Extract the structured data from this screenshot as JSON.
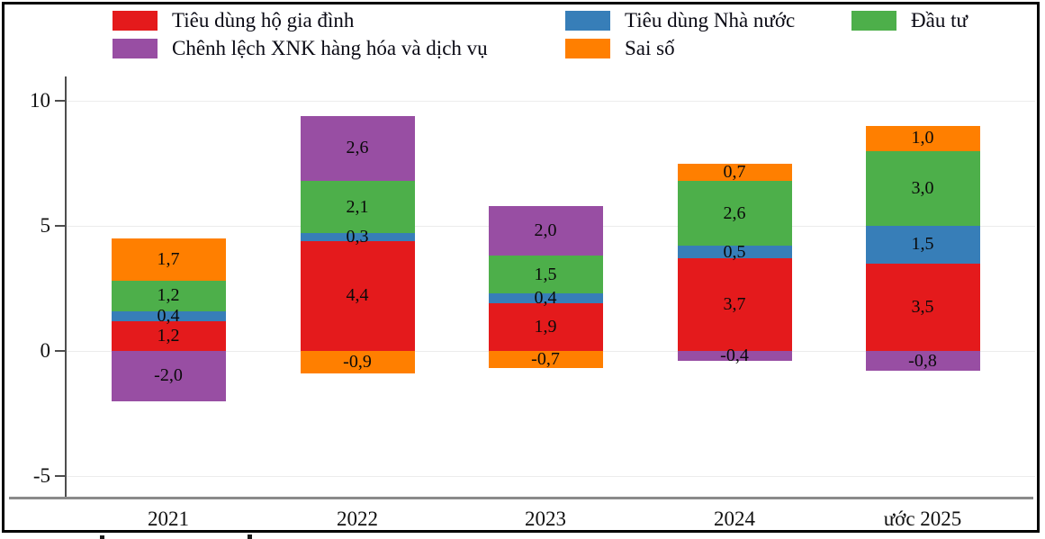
{
  "chart_data": {
    "type": "bar",
    "stacked": true,
    "title": "",
    "xlabel": "",
    "ylabel": "",
    "categories": [
      "2021",
      "2022",
      "2023",
      "2024",
      "ước 2025"
    ],
    "series": [
      {
        "name": "Tiêu dùng hộ gia đình",
        "color": "#e41a1c",
        "values": [
          1.2,
          4.4,
          1.9,
          3.7,
          3.5
        ],
        "labels": [
          "1,2",
          "4,4",
          "1,9",
          "3,7",
          "3,5"
        ]
      },
      {
        "name": "Tiêu dùng Nhà nước",
        "color": "#377eb8",
        "values": [
          0.4,
          0.3,
          0.4,
          0.5,
          1.5
        ],
        "labels": [
          "0,4",
          "0,3",
          "0,4",
          "0,5",
          "1,5"
        ]
      },
      {
        "name": "Đầu tư",
        "color": "#4daf4a",
        "values": [
          1.2,
          2.1,
          1.5,
          2.6,
          3.0
        ],
        "labels": [
          "1,2",
          "2,1",
          "1,5",
          "2,6",
          "3,0"
        ]
      },
      {
        "name": "Chênh lệch XNK hàng hóa và dịch vụ",
        "color": "#984ea3",
        "values": [
          -2.0,
          2.6,
          2.0,
          -0.4,
          -0.8
        ],
        "labels": [
          "-2,0",
          "2,6",
          "2,0",
          "-0,4",
          "-0,8"
        ]
      },
      {
        "name": "Sai số",
        "color": "#ff7f00",
        "values": [
          1.7,
          -0.9,
          -0.7,
          0.7,
          1.0
        ],
        "labels": [
          "1,7",
          "-0,9",
          "-0,7",
          "0,7",
          "1,0"
        ]
      }
    ],
    "yticks": [
      "10",
      "5",
      "0",
      "-5"
    ],
    "ylim": [
      -5.9,
      10.9
    ],
    "grid": true,
    "legend_position": "top"
  }
}
